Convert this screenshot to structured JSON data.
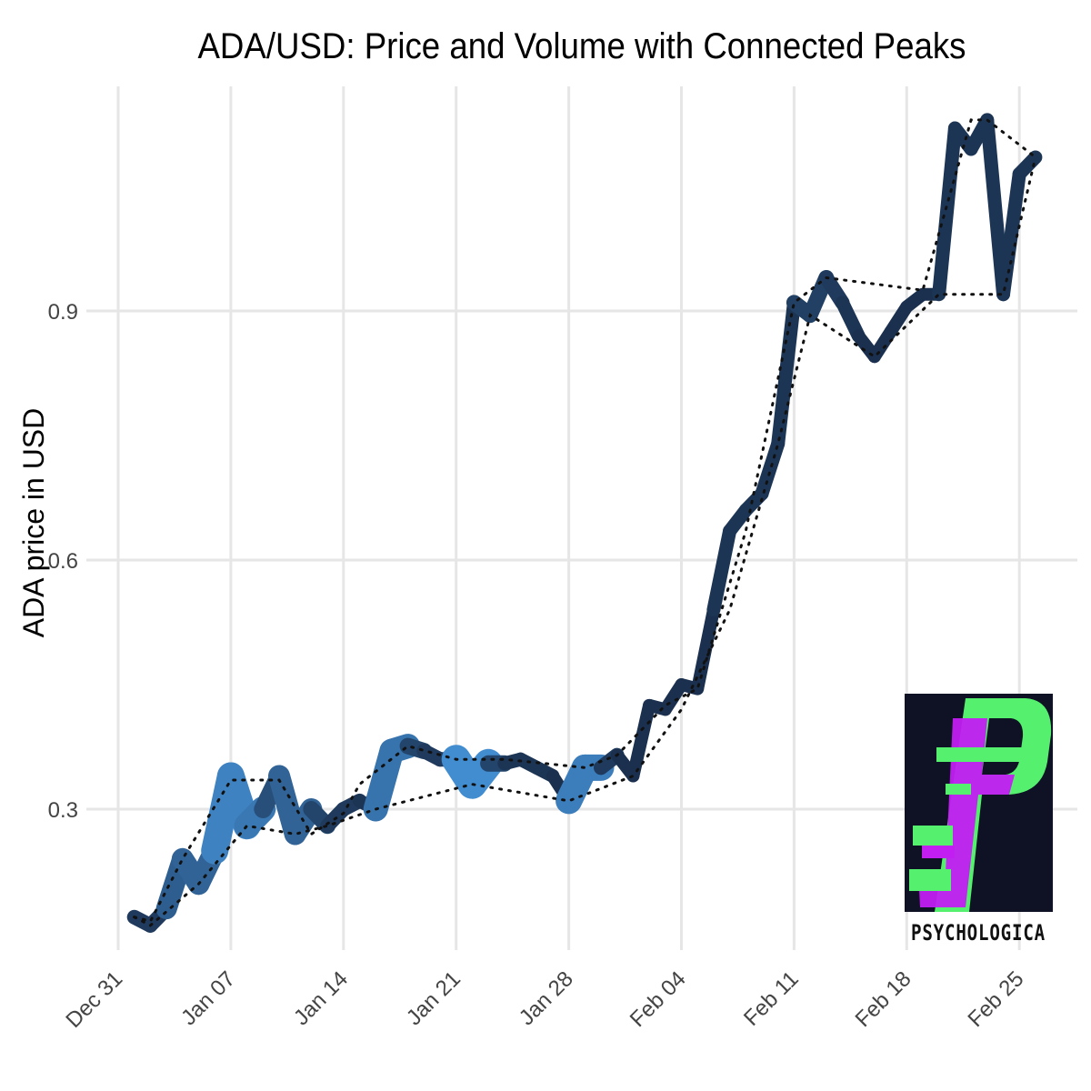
{
  "chart_data": {
    "type": "line",
    "title": "ADA/USD: Price and Volume with Connected Peaks",
    "xlabel": "",
    "ylabel": "ADA price in USD",
    "x_ticks": [
      "Dec 31",
      "Jan 07",
      "Jan 14",
      "Jan 21",
      "Jan 28",
      "Feb 04",
      "Feb 11",
      "Feb 18",
      "Feb 25"
    ],
    "y_ticks": [
      "0.3",
      "0.6",
      "0.9"
    ],
    "xlim": [
      "2017-12-31",
      "2018-02-27"
    ],
    "ylim": [
      0.13,
      1.17
    ],
    "grid": true,
    "series": [
      {
        "style": "thick line, width and shade encode volume",
        "x": [
          "2018-01-01",
          "2018-01-02",
          "2018-01-03",
          "2018-01-04",
          "2018-01-05",
          "2018-01-06",
          "2018-01-07",
          "2018-01-08",
          "2018-01-09",
          "2018-01-10",
          "2018-01-11",
          "2018-01-12",
          "2018-01-13",
          "2018-01-14",
          "2018-01-15",
          "2018-01-16",
          "2018-01-17",
          "2018-01-18",
          "2018-01-19",
          "2018-01-20",
          "2018-01-21",
          "2018-01-22",
          "2018-01-23",
          "2018-01-24",
          "2018-01-25",
          "2018-01-26",
          "2018-01-27",
          "2018-01-28",
          "2018-01-29",
          "2018-01-30",
          "2018-01-31",
          "2018-02-01",
          "2018-02-02",
          "2018-02-03",
          "2018-02-04",
          "2018-02-05",
          "2018-02-06",
          "2018-02-07",
          "2018-02-08",
          "2018-02-09",
          "2018-02-10",
          "2018-02-11",
          "2018-02-12",
          "2018-02-13",
          "2018-02-14",
          "2018-02-15",
          "2018-02-16",
          "2018-02-17",
          "2018-02-18",
          "2018-02-19",
          "2018-02-20",
          "2018-02-21",
          "2018-02-22",
          "2018-02-23",
          "2018-02-24",
          "2018-02-25",
          "2018-02-26"
        ],
        "y": [
          0.17,
          0.16,
          0.18,
          0.24,
          0.21,
          0.25,
          0.34,
          0.28,
          0.3,
          0.34,
          0.27,
          0.3,
          0.28,
          0.3,
          0.31,
          0.3,
          0.37,
          0.376,
          0.37,
          0.36,
          0.36,
          0.33,
          0.355,
          0.355,
          0.36,
          0.35,
          0.34,
          0.31,
          0.35,
          0.35,
          0.365,
          0.34,
          0.425,
          0.42,
          0.45,
          0.445,
          0.54,
          0.635,
          0.66,
          0.68,
          0.74,
          0.91,
          0.895,
          0.94,
          0.91,
          0.87,
          0.845,
          0.875,
          0.905,
          0.92,
          0.92,
          1.12,
          1.095,
          1.13,
          0.92,
          1.065,
          1.085
        ],
        "volume_level": [
          0.2,
          0.15,
          0.2,
          0.55,
          0.6,
          0.55,
          0.9,
          0.8,
          0.4,
          0.3,
          0.6,
          0.3,
          0.2,
          0.2,
          0.15,
          0.15,
          0.75,
          0.3,
          0.2,
          0.15,
          0.2,
          1.0,
          0.3,
          0.15,
          0.15,
          0.15,
          0.1,
          0.1,
          0.85,
          0.2,
          0.1,
          0.1,
          0.1,
          0.1,
          0.1,
          0.1,
          0.1,
          0.15,
          0.15,
          0.15,
          0.15,
          0.15,
          0.25,
          0.2,
          0.15,
          0.1,
          0.1,
          0.1,
          0.1,
          0.1,
          0.1,
          0.15,
          0.15,
          0.15,
          0.15,
          0.15,
          0.15
        ]
      },
      {
        "style": "dotted line connecting peaks",
        "x": [
          "2018-01-01",
          "2018-01-02",
          "2018-01-04",
          "2018-01-07",
          "2018-01-10",
          "2018-01-12",
          "2018-01-14",
          "2018-01-15",
          "2018-01-18",
          "2018-01-21",
          "2018-01-24",
          "2018-01-29",
          "2018-01-31",
          "2018-02-03",
          "2018-02-05",
          "2018-02-08",
          "2018-02-11",
          "2018-02-13",
          "2018-02-19",
          "2018-02-22",
          "2018-02-23",
          "2018-02-26"
        ],
        "y": [
          0.17,
          0.165,
          0.24,
          0.335,
          0.335,
          0.27,
          0.295,
          0.33,
          0.376,
          0.36,
          0.36,
          0.35,
          0.365,
          0.425,
          0.445,
          0.635,
          0.91,
          0.94,
          0.925,
          1.13,
          1.13,
          1.085
        ]
      },
      {
        "style": "dotted line connecting troughs",
        "x": [
          "2018-01-01",
          "2018-01-02",
          "2018-01-05",
          "2018-01-08",
          "2018-01-11",
          "2018-01-13",
          "2018-01-16",
          "2018-01-22",
          "2018-01-28",
          "2018-02-01",
          "2018-02-04",
          "2018-02-07",
          "2018-02-10",
          "2018-02-12",
          "2018-02-16",
          "2018-02-20",
          "2018-02-24",
          "2018-02-26"
        ],
        "y": [
          0.17,
          0.16,
          0.21,
          0.28,
          0.27,
          0.28,
          0.3,
          0.33,
          0.31,
          0.34,
          0.42,
          0.54,
          0.74,
          0.895,
          0.845,
          0.92,
          0.92,
          1.085
        ]
      }
    ],
    "colors": {
      "line_dark": "#16263f",
      "line_mid": "#3470a8",
      "line_light": "#4a9eea",
      "dots": "#111111",
      "grid": "#e6e6e6"
    }
  },
  "logo": {
    "text": "PSYCHOLOGICA",
    "bg_color": "#0f1224",
    "green": "#55f06e",
    "magenta": "#c21ef2"
  }
}
